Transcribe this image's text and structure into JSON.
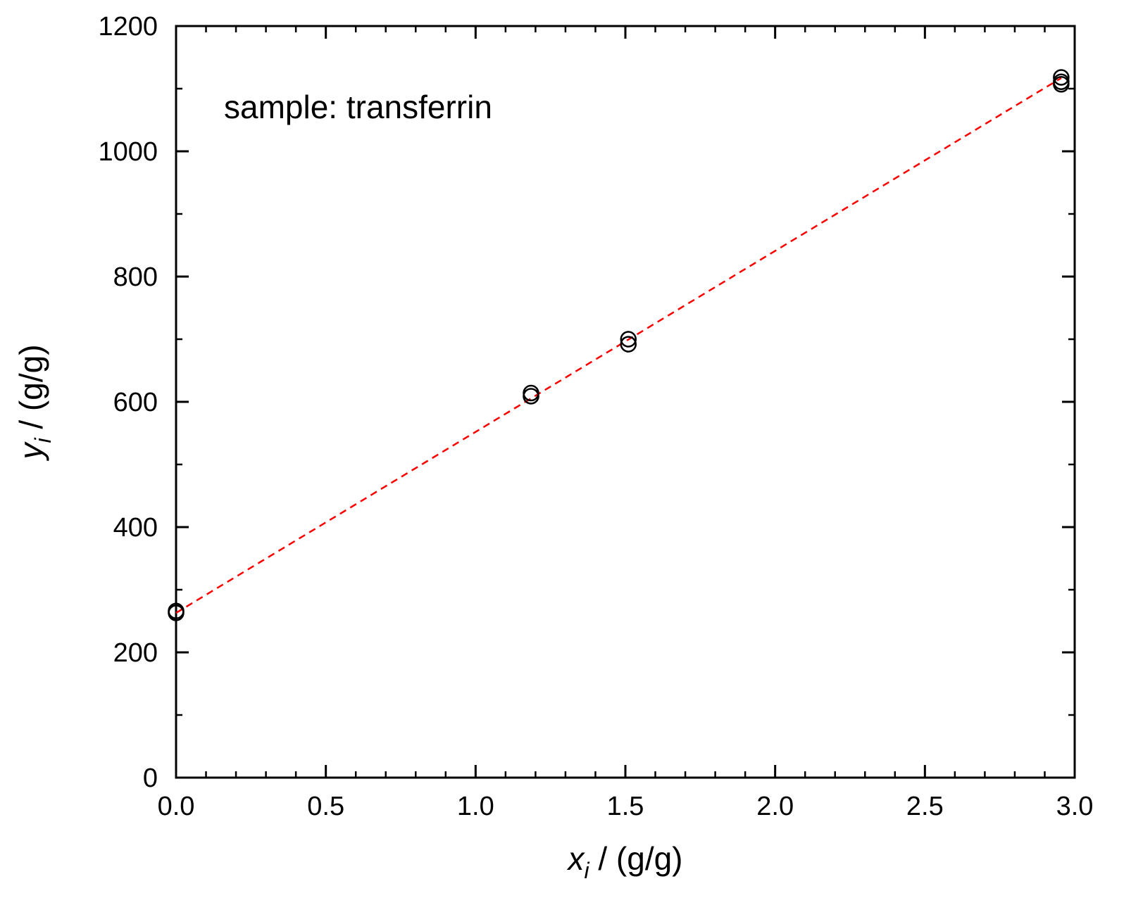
{
  "chart_data": {
    "type": "scatter",
    "annotation": "sample: transferrin",
    "xlabel": {
      "symbol": "x",
      "subscript": "i",
      "unit": " / (g/g)"
    },
    "ylabel": {
      "symbol": "y",
      "subscript": "i",
      "unit": " / (g/g)"
    },
    "xlim": [
      0,
      3.0
    ],
    "ylim": [
      0,
      1200
    ],
    "x_ticks": [
      0.0,
      0.5,
      1.0,
      1.5,
      2.0,
      2.5,
      3.0
    ],
    "x_tick_labels": [
      "0.0",
      "0.5",
      "1.0",
      "1.5",
      "2.0",
      "2.5",
      "3.0"
    ],
    "x_minor_step": 0.1,
    "y_ticks": [
      0,
      200,
      400,
      600,
      800,
      1000,
      1200
    ],
    "y_tick_labels": [
      "0",
      "200",
      "400",
      "600",
      "800",
      "1000",
      "1200"
    ],
    "y_minor_step": 100,
    "grid": false,
    "points": [
      {
        "x": 0.0,
        "y": 263
      },
      {
        "x": 0.0,
        "y": 266
      },
      {
        "x": 1.185,
        "y": 609
      },
      {
        "x": 1.185,
        "y": 614
      },
      {
        "x": 1.51,
        "y": 692
      },
      {
        "x": 1.51,
        "y": 700
      },
      {
        "x": 2.955,
        "y": 1107
      },
      {
        "x": 2.955,
        "y": 1111
      },
      {
        "x": 2.955,
        "y": 1118
      }
    ],
    "fit_line": {
      "x": [
        0.0,
        2.955
      ],
      "y": [
        263,
        1117
      ],
      "style": "dashed",
      "color": "#ff0000"
    },
    "marker": {
      "shape": "open-circle",
      "color": "#000000"
    }
  }
}
